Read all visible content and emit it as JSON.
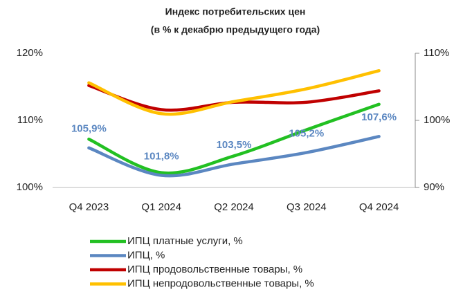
{
  "chart_data": {
    "type": "line",
    "title": "Индекс потребительских цен",
    "subtitle": "(в % к декабрю предыдущего года)",
    "categories": [
      "Q4 2023",
      "Q1 2024",
      "Q2 2024",
      "Q3 2024",
      "Q4 2024"
    ],
    "series": [
      {
        "name": "ИПЦ платные услуги, %",
        "color": "#22c022",
        "values": [
          107.2,
          102.2,
          104.7,
          108.6,
          112.4
        ]
      },
      {
        "name": "ИПЦ, %",
        "color": "#5b87c1",
        "values": [
          105.9,
          101.8,
          103.5,
          105.2,
          107.6
        ],
        "value_labels": [
          "105,9%",
          "101,8%",
          "103,5%",
          "105,2%",
          "107,6%"
        ]
      },
      {
        "name": "ИПЦ продовольственные товары, %",
        "color": "#c00000",
        "axis": "y2",
        "values": [
          105.2,
          101.6,
          102.7,
          102.7,
          104.4
        ]
      },
      {
        "name": "ИПЦ непродовольственные товары, %",
        "color": "#ffc000",
        "axis": "y2",
        "values": [
          105.6,
          101.0,
          102.8,
          104.7,
          107.4
        ]
      }
    ],
    "ylim": [
      100,
      120
    ],
    "yticks": [
      {
        "value": 100,
        "label": "100%"
      },
      {
        "value": 110,
        "label": "110%"
      },
      {
        "value": 120,
        "label": "120%"
      }
    ],
    "y2lim": [
      90,
      110
    ],
    "y2ticks": [
      {
        "value": 90,
        "label": "90%"
      },
      {
        "value": 100,
        "label": "100%"
      },
      {
        "value": 110,
        "label": "110%"
      }
    ],
    "legend": "bottom"
  }
}
